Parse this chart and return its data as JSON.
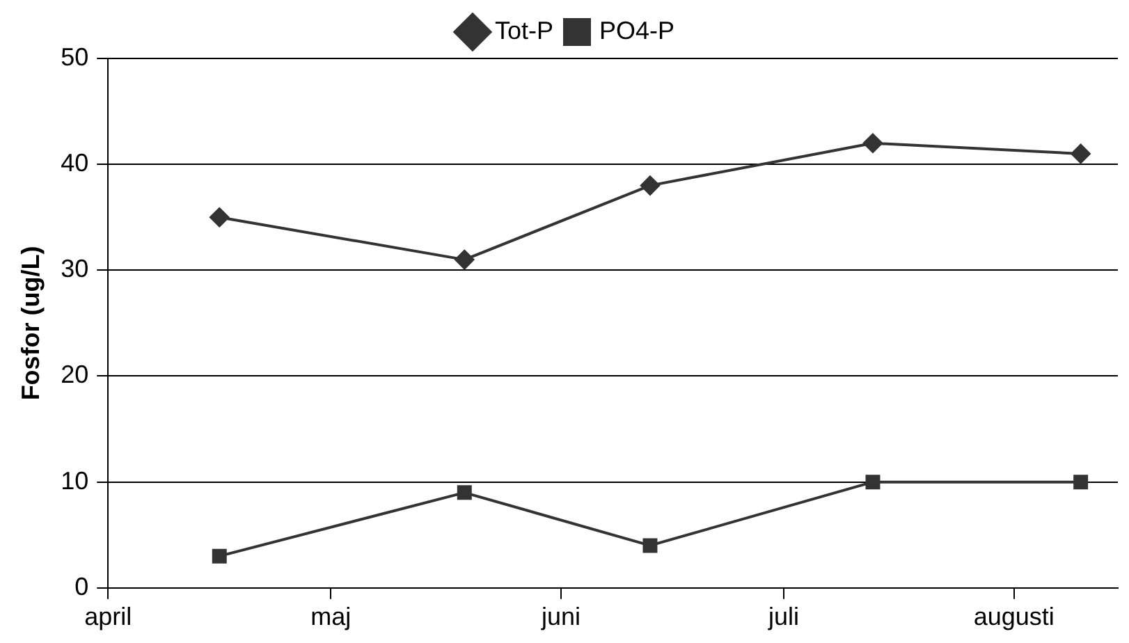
{
  "chart_data": {
    "type": "line",
    "ylabel": "Fosfor (ug/L)",
    "x": [
      "--04-16",
      "--05-19",
      "--06-13",
      "--07-13",
      "--08-10"
    ],
    "series": [
      {
        "name": "Tot-P",
        "color": "#333333",
        "marker": "diamond",
        "values": [
          35,
          31,
          38,
          42,
          41
        ]
      },
      {
        "name": "PO4-P",
        "color": "#333333",
        "marker": "square",
        "values": [
          3,
          9,
          4,
          10,
          10
        ]
      }
    ],
    "xlim": [
      "--04-01",
      "--08-15"
    ],
    "xticks": [
      {
        "value": "--04-01",
        "label": "april"
      },
      {
        "value": "--05-01",
        "label": "maj"
      },
      {
        "value": "--06-01",
        "label": "juni"
      },
      {
        "value": "--07-01",
        "label": "juli"
      },
      {
        "value": "--08-01",
        "label": "augusti"
      }
    ],
    "ylim": [
      0,
      50
    ],
    "yticks": [
      0,
      10,
      20,
      30,
      40,
      50
    ],
    "grid": "y",
    "legend": "top",
    "line_style": "solid"
  }
}
